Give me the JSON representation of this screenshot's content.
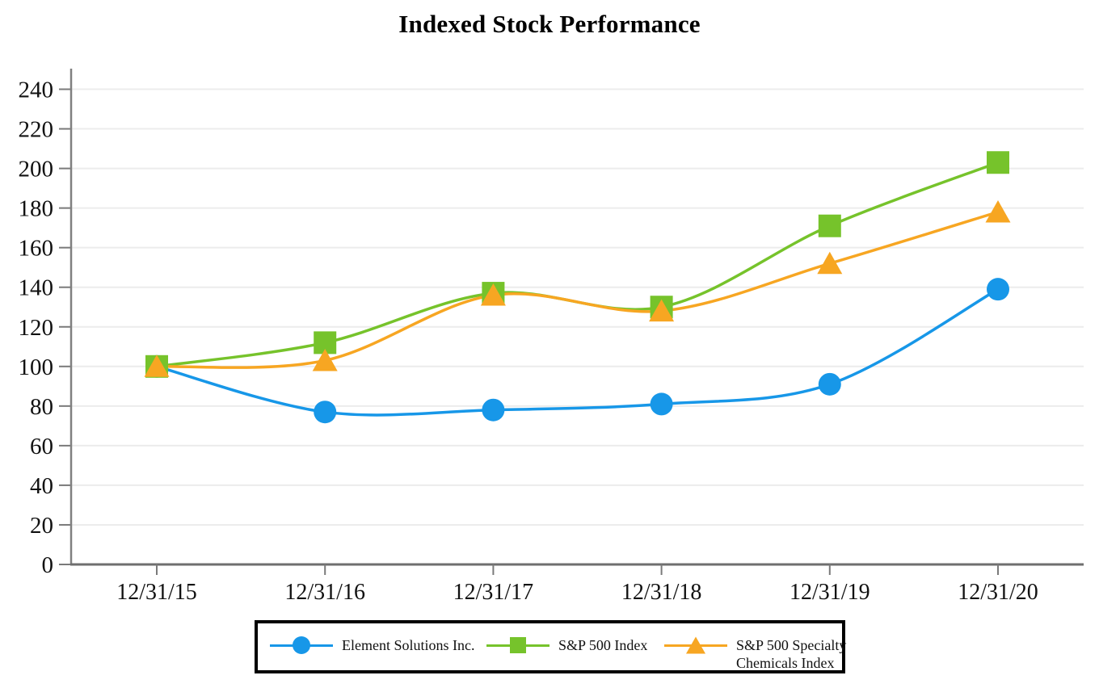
{
  "title": "Indexed Stock Performance",
  "chart_data": {
    "type": "line",
    "title": "Indexed Stock Performance",
    "xlabel": "",
    "ylabel": "",
    "categories": [
      "12/31/15",
      "12/31/16",
      "12/31/17",
      "12/31/18",
      "12/31/19",
      "12/31/20"
    ],
    "series": [
      {
        "name": "Element Solutions Inc.",
        "marker": "circle",
        "color": "#1797E8",
        "values": [
          100,
          77,
          78,
          81,
          91,
          139
        ]
      },
      {
        "name": "S&P 500 Index",
        "marker": "square",
        "color": "#76C32B",
        "values": [
          100,
          112,
          137,
          130,
          171,
          203
        ]
      },
      {
        "name": "S&P 500 Specialty Chemicals Index",
        "marker": "triangle",
        "color": "#F7A622",
        "values": [
          100,
          103,
          136,
          128,
          152,
          178
        ]
      }
    ],
    "ylim": [
      0,
      250
    ],
    "ytick_step": 20,
    "ytick_max": 240,
    "grid": true,
    "legend_position": "bottom",
    "legend_lines": [
      [
        "Element Solutions Inc."
      ],
      [
        "S&P 500 Index"
      ],
      [
        "S&P 500 Specialty",
        "Chemicals Index"
      ]
    ]
  },
  "colors": {
    "grid": "#ECECEC",
    "y_axis": "#808080",
    "x_axis": "#6E6E6E",
    "tick": "#7A7A7A",
    "text": "#111111",
    "legend_border": "#000000",
    "background": "#FFFFFF"
  }
}
